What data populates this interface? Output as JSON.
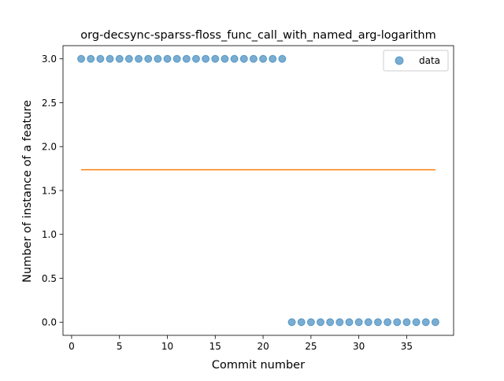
{
  "chart_data": {
    "type": "scatter",
    "title": "org-decsync-sparss-floss_func_call_with_named_arg-logarithm",
    "xlabel": "Commit number",
    "ylabel": "Number of instance of a feature",
    "xlim": [
      -0.9,
      39.9
    ],
    "ylim": [
      -0.15,
      3.15
    ],
    "xticks": [
      0,
      5,
      10,
      15,
      20,
      25,
      30,
      35
    ],
    "xtick_labels": [
      "0",
      "5",
      "10",
      "15",
      "20",
      "25",
      "30",
      "35"
    ],
    "yticks": [
      0.0,
      0.5,
      1.0,
      1.5,
      2.0,
      2.5,
      3.0
    ],
    "ytick_labels": [
      "0.0",
      "0.5",
      "1.0",
      "1.5",
      "2.0",
      "2.5",
      "3.0"
    ],
    "grid": false,
    "legend_position": "top-right",
    "series": [
      {
        "name": "data",
        "kind": "scatter",
        "color": "#1f77b4",
        "x": [
          1,
          2,
          3,
          4,
          5,
          6,
          7,
          8,
          9,
          10,
          11,
          12,
          13,
          14,
          15,
          16,
          17,
          18,
          19,
          20,
          21,
          22,
          23,
          24,
          25,
          26,
          27,
          28,
          29,
          30,
          31,
          32,
          33,
          34,
          35,
          36,
          37,
          38
        ],
        "y": [
          3,
          3,
          3,
          3,
          3,
          3,
          3,
          3,
          3,
          3,
          3,
          3,
          3,
          3,
          3,
          3,
          3,
          3,
          3,
          3,
          3,
          3,
          0,
          0,
          0,
          0,
          0,
          0,
          0,
          0,
          0,
          0,
          0,
          0,
          0,
          0,
          0,
          0
        ]
      },
      {
        "kind": "line",
        "color": "#ff7f0e",
        "x": [
          1,
          38
        ],
        "y": [
          1.737,
          1.737
        ]
      }
    ]
  }
}
